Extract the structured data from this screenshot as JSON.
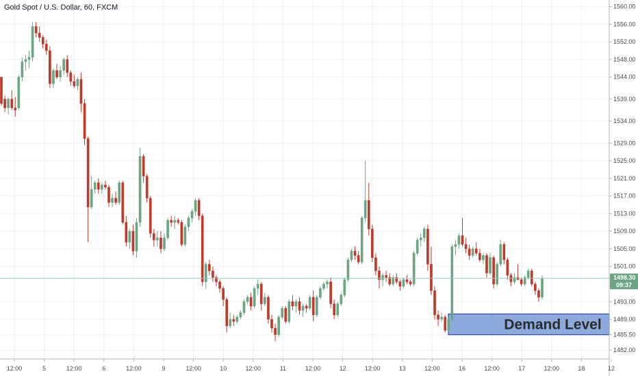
{
  "chart_data": {
    "type": "candlestick",
    "title": "Gold Spot / U.S. Dollar, 60, FXCM",
    "x_ticks": [
      "12:00",
      "5",
      "12:00",
      "6",
      "12:00",
      "9",
      "12:00",
      "10",
      "12:00",
      "11",
      "12:00",
      "12",
      "12:00",
      "13",
      "12:00",
      "16",
      "12:00",
      "17",
      "12:00",
      "18",
      "12"
    ],
    "y_ticks": [
      1560,
      1556,
      1552,
      1548,
      1544,
      1539,
      1534,
      1529,
      1525,
      1521,
      1517,
      1513,
      1509,
      1505,
      1501,
      1493,
      1489,
      1485.5,
      1482
    ],
    "ylim": [
      1480,
      1561.5
    ],
    "current_price": {
      "value": "1498.30",
      "countdown": "09:37"
    },
    "zone": {
      "label": "Demand Level",
      "low": 1485.5,
      "high": 1490.2
    },
    "colors": {
      "up": "#6ba583",
      "down": "#c0392b",
      "zone_fill": "#7a9ad6",
      "zone_border": "#2e4fa8",
      "price_line": "#8fc9b8",
      "grid": "#eef0f3"
    },
    "candles": [
      [
        1544.0,
        1544.0,
        1537.5,
        1538.0
      ],
      [
        1539.0,
        1539.8,
        1536.0,
        1537.0
      ],
      [
        1537.0,
        1539.5,
        1535.5,
        1539.0
      ],
      [
        1539.0,
        1541.0,
        1536.5,
        1537.0
      ],
      [
        1537.0,
        1539.5,
        1535.0,
        1536.5
      ],
      [
        1537.0,
        1544.5,
        1536.5,
        1544.0
      ],
      [
        1544.0,
        1548.5,
        1543.0,
        1547.5
      ],
      [
        1547.5,
        1549.0,
        1545.5,
        1548.0
      ],
      [
        1548.0,
        1550.0,
        1546.0,
        1548.5
      ],
      [
        1548.5,
        1556.5,
        1547.5,
        1555.5
      ],
      [
        1555.5,
        1556.5,
        1553.0,
        1554.0
      ],
      [
        1554.0,
        1555.5,
        1552.0,
        1553.0
      ],
      [
        1553.0,
        1553.5,
        1550.5,
        1551.5
      ],
      [
        1551.5,
        1552.5,
        1549.0,
        1550.0
      ],
      [
        1550.0,
        1551.0,
        1541.5,
        1542.5
      ],
      [
        1542.5,
        1546.0,
        1541.5,
        1545.5
      ],
      [
        1545.5,
        1547.0,
        1543.5,
        1544.0
      ],
      [
        1544.0,
        1546.5,
        1543.0,
        1545.5
      ],
      [
        1545.5,
        1548.5,
        1544.5,
        1548.0
      ],
      [
        1548.0,
        1549.0,
        1544.0,
        1545.0
      ],
      [
        1545.0,
        1545.5,
        1542.0,
        1543.0
      ],
      [
        1543.0,
        1544.5,
        1541.5,
        1542.0
      ],
      [
        1542.0,
        1544.0,
        1541.0,
        1543.5
      ],
      [
        1543.5,
        1545.0,
        1536.0,
        1538.0
      ],
      [
        1538.0,
        1539.0,
        1528.5,
        1530.0
      ],
      [
        1530.0,
        1530.5,
        1506.5,
        1514.5
      ],
      [
        1514.5,
        1521.5,
        1514.0,
        1518.5
      ],
      [
        1518.5,
        1520.5,
        1517.5,
        1520.0
      ],
      [
        1520.0,
        1521.0,
        1517.5,
        1518.5
      ],
      [
        1518.5,
        1520.0,
        1517.5,
        1519.5
      ],
      [
        1519.5,
        1520.5,
        1518.5,
        1519.0
      ],
      [
        1519.0,
        1519.5,
        1514.5,
        1515.5
      ],
      [
        1515.5,
        1517.5,
        1514.5,
        1516.5
      ],
      [
        1516.5,
        1518.0,
        1515.0,
        1515.5
      ],
      [
        1515.5,
        1520.5,
        1515.0,
        1520.0
      ],
      [
        1520.0,
        1520.5,
        1510.5,
        1511.0
      ],
      [
        1511.0,
        1512.5,
        1505.5,
        1506.5
      ],
      [
        1506.5,
        1509.5,
        1505.0,
        1509.0
      ],
      [
        1509.0,
        1510.5,
        1503.5,
        1504.5
      ],
      [
        1504.5,
        1512.0,
        1503.0,
        1511.0
      ],
      [
        1511.0,
        1528.0,
        1510.0,
        1526.0
      ],
      [
        1526.0,
        1526.5,
        1520.0,
        1521.5
      ],
      [
        1521.5,
        1522.0,
        1515.5,
        1516.5
      ],
      [
        1516.5,
        1517.0,
        1507.5,
        1508.5
      ],
      [
        1508.5,
        1509.5,
        1505.5,
        1507.0
      ],
      [
        1507.0,
        1509.0,
        1505.5,
        1507.5
      ],
      [
        1507.5,
        1509.0,
        1504.0,
        1505.0
      ],
      [
        1505.0,
        1508.5,
        1504.5,
        1507.5
      ],
      [
        1507.5,
        1512.0,
        1507.0,
        1511.5
      ],
      [
        1511.5,
        1512.5,
        1510.0,
        1511.0
      ],
      [
        1511.0,
        1512.5,
        1509.5,
        1511.5
      ],
      [
        1511.5,
        1512.0,
        1510.5,
        1511.0
      ],
      [
        1511.0,
        1511.5,
        1505.5,
        1506.0
      ],
      [
        1506.0,
        1510.5,
        1505.5,
        1510.0
      ],
      [
        1510.0,
        1512.5,
        1509.0,
        1512.0
      ],
      [
        1512.0,
        1514.0,
        1511.0,
        1513.5
      ],
      [
        1513.5,
        1516.5,
        1512.5,
        1516.0
      ],
      [
        1516.0,
        1516.5,
        1511.5,
        1512.5
      ],
      [
        1512.5,
        1513.0,
        1496.5,
        1497.5
      ],
      [
        1497.5,
        1502.0,
        1496.0,
        1501.5
      ],
      [
        1501.5,
        1502.5,
        1499.0,
        1500.0
      ],
      [
        1500.0,
        1501.0,
        1497.5,
        1498.5
      ],
      [
        1498.5,
        1499.0,
        1496.5,
        1497.5
      ],
      [
        1497.5,
        1498.0,
        1495.0,
        1496.0
      ],
      [
        1496.0,
        1496.5,
        1492.0,
        1493.5
      ],
      [
        1493.5,
        1494.0,
        1486.0,
        1487.5
      ],
      [
        1487.5,
        1490.5,
        1487.0,
        1489.0
      ],
      [
        1489.0,
        1490.0,
        1487.5,
        1488.5
      ],
      [
        1488.5,
        1490.0,
        1488.0,
        1489.5
      ],
      [
        1489.5,
        1491.0,
        1489.0,
        1490.5
      ],
      [
        1490.5,
        1493.5,
        1490.0,
        1493.0
      ],
      [
        1493.0,
        1494.5,
        1492.5,
        1494.0
      ],
      [
        1494.0,
        1495.0,
        1491.0,
        1492.0
      ],
      [
        1492.0,
        1496.5,
        1491.5,
        1496.0
      ],
      [
        1496.0,
        1498.0,
        1494.5,
        1497.0
      ],
      [
        1497.0,
        1497.5,
        1491.0,
        1492.5
      ],
      [
        1492.5,
        1495.0,
        1492.0,
        1494.0
      ],
      [
        1494.0,
        1494.5,
        1488.0,
        1489.0
      ],
      [
        1489.0,
        1490.0,
        1486.0,
        1487.0
      ],
      [
        1487.0,
        1488.0,
        1484.0,
        1485.5
      ],
      [
        1485.5,
        1490.0,
        1485.0,
        1489.5
      ],
      [
        1489.5,
        1492.0,
        1489.0,
        1491.5
      ],
      [
        1491.5,
        1492.0,
        1488.0,
        1488.5
      ],
      [
        1488.5,
        1493.5,
        1488.0,
        1493.0
      ],
      [
        1493.0,
        1494.5,
        1491.0,
        1492.0
      ],
      [
        1492.0,
        1493.5,
        1490.5,
        1493.0
      ],
      [
        1493.0,
        1494.0,
        1490.0,
        1491.0
      ],
      [
        1491.0,
        1492.5,
        1489.5,
        1492.0
      ],
      [
        1492.0,
        1492.5,
        1490.5,
        1491.5
      ],
      [
        1491.5,
        1494.5,
        1491.0,
        1494.0
      ],
      [
        1494.0,
        1495.5,
        1488.5,
        1490.0
      ],
      [
        1490.0,
        1494.5,
        1489.5,
        1494.0
      ],
      [
        1494.0,
        1496.5,
        1493.5,
        1496.0
      ],
      [
        1496.0,
        1497.5,
        1495.5,
        1497.0
      ],
      [
        1497.0,
        1498.0,
        1496.0,
        1497.5
      ],
      [
        1497.5,
        1498.5,
        1491.5,
        1492.5
      ],
      [
        1492.5,
        1493.5,
        1489.0,
        1490.0
      ],
      [
        1490.0,
        1493.0,
        1489.5,
        1492.5
      ],
      [
        1492.5,
        1495.0,
        1492.0,
        1494.5
      ],
      [
        1494.5,
        1498.5,
        1494.0,
        1498.0
      ],
      [
        1498.0,
        1503.0,
        1497.5,
        1502.5
      ],
      [
        1502.5,
        1505.0,
        1502.0,
        1504.5
      ],
      [
        1504.5,
        1505.5,
        1502.5,
        1503.5
      ],
      [
        1503.5,
        1504.5,
        1501.5,
        1502.0
      ],
      [
        1502.0,
        1512.5,
        1501.5,
        1512.0
      ],
      [
        1512.0,
        1525.0,
        1511.0,
        1516.0
      ],
      [
        1516.0,
        1520.0,
        1508.0,
        1509.5
      ],
      [
        1509.5,
        1510.5,
        1502.0,
        1503.0
      ],
      [
        1503.0,
        1504.0,
        1499.0,
        1500.0
      ],
      [
        1500.0,
        1501.0,
        1496.0,
        1498.0
      ],
      [
        1498.0,
        1499.5,
        1496.5,
        1499.0
      ],
      [
        1499.0,
        1500.0,
        1497.5,
        1498.5
      ],
      [
        1498.5,
        1499.5,
        1496.5,
        1497.0
      ],
      [
        1497.0,
        1499.0,
        1496.5,
        1498.5
      ],
      [
        1498.5,
        1499.5,
        1497.0,
        1497.5
      ],
      [
        1497.5,
        1498.0,
        1495.5,
        1496.5
      ],
      [
        1496.5,
        1498.5,
        1496.0,
        1498.0
      ],
      [
        1498.0,
        1499.0,
        1497.0,
        1497.5
      ],
      [
        1497.5,
        1498.0,
        1496.5,
        1497.0
      ],
      [
        1497.0,
        1504.5,
        1496.5,
        1504.0
      ],
      [
        1504.0,
        1507.5,
        1503.5,
        1507.0
      ],
      [
        1507.0,
        1508.5,
        1505.5,
        1507.5
      ],
      [
        1507.5,
        1510.0,
        1506.5,
        1509.5
      ],
      [
        1509.5,
        1510.5,
        1500.0,
        1501.5
      ],
      [
        1501.5,
        1505.5,
        1494.5,
        1495.5
      ],
      [
        1495.5,
        1496.5,
        1489.0,
        1490.0
      ],
      [
        1490.0,
        1491.0,
        1487.5,
        1489.0
      ],
      [
        1489.0,
        1490.5,
        1488.5,
        1489.5
      ],
      [
        1489.5,
        1490.0,
        1486.0,
        1486.5
      ],
      [
        1486.5,
        1489.5,
        1486.0,
        1489.0
      ],
      [
        1489.0,
        1506.0,
        1488.5,
        1505.5
      ],
      [
        1505.5,
        1507.0,
        1503.5,
        1506.0
      ],
      [
        1506.0,
        1508.5,
        1505.0,
        1508.0
      ],
      [
        1508.0,
        1512.0,
        1505.5,
        1506.0
      ],
      [
        1506.0,
        1507.5,
        1504.0,
        1505.0
      ],
      [
        1505.0,
        1506.0,
        1502.5,
        1503.5
      ],
      [
        1503.5,
        1505.5,
        1503.0,
        1505.0
      ],
      [
        1505.0,
        1506.5,
        1503.5,
        1504.0
      ],
      [
        1504.0,
        1505.0,
        1502.0,
        1502.5
      ],
      [
        1502.5,
        1504.0,
        1501.5,
        1503.5
      ],
      [
        1503.5,
        1504.0,
        1498.5,
        1499.5
      ],
      [
        1499.5,
        1504.0,
        1499.0,
        1503.0
      ],
      [
        1503.0,
        1503.5,
        1496.0,
        1497.0
      ],
      [
        1497.0,
        1502.0,
        1496.5,
        1501.5
      ],
      [
        1501.5,
        1507.0,
        1501.0,
        1506.0
      ],
      [
        1506.0,
        1506.5,
        1501.5,
        1502.5
      ],
      [
        1502.5,
        1503.0,
        1498.0,
        1499.0
      ],
      [
        1499.0,
        1499.5,
        1496.5,
        1497.5
      ],
      [
        1497.5,
        1499.5,
        1497.0,
        1498.5
      ],
      [
        1498.5,
        1501.5,
        1498.0,
        1498.0
      ],
      [
        1498.0,
        1498.5,
        1496.5,
        1497.0
      ],
      [
        1497.0,
        1499.0,
        1496.5,
        1498.5
      ],
      [
        1498.5,
        1500.5,
        1498.0,
        1500.0
      ],
      [
        1500.0,
        1500.5,
        1496.5,
        1497.0
      ],
      [
        1497.0,
        1497.5,
        1494.5,
        1495.5
      ],
      [
        1495.5,
        1496.0,
        1493.0,
        1494.0
      ],
      [
        1494.0,
        1499.0,
        1493.5,
        1498.3
      ]
    ]
  }
}
